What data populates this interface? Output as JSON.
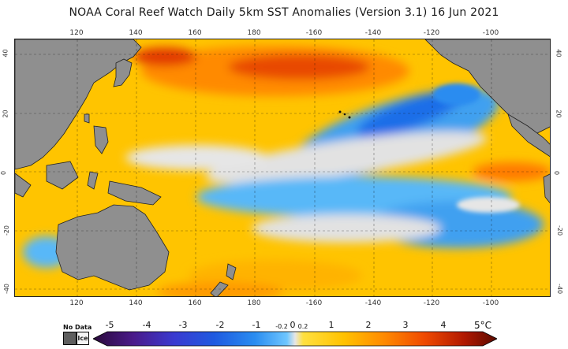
{
  "title": "NOAA Coral Reef Watch Daily 5km SST Anomalies (Version 3.1)   16 Jun 2021",
  "longitude_labels": [
    "120",
    "140",
    "160",
    "180",
    "-160",
    "-140",
    "-120",
    "-100"
  ],
  "latitude_labels": [
    "40",
    "20",
    "0",
    "-20",
    "-40"
  ],
  "legend": {
    "no_data_label": "No Data",
    "ice_label": "Ice",
    "scale_labels": [
      "-5",
      "-4",
      "-3",
      "-2",
      "-1",
      "-0.2",
      "0",
      "0.2",
      "1",
      "2",
      "3",
      "4",
      "5°C"
    ],
    "colors": [
      "#2a0a3a",
      "#4a1a8a",
      "#3a3ad0",
      "#1f5ae0",
      "#2a8cf0",
      "#6ec6ff",
      "#e6e6e6",
      "#ffe040",
      "#ffc200",
      "#ff8a00",
      "#f04a00",
      "#b01800",
      "#5a0a00"
    ]
  },
  "colors": {
    "land": "#8f8f8f",
    "warm": "#ffcc00",
    "orange": "#ff9a00",
    "hot": "#e84a00",
    "cool": "#3fa0f0",
    "deep_cool": "#1e6ee8",
    "neutral": "#e2e2e2"
  }
}
